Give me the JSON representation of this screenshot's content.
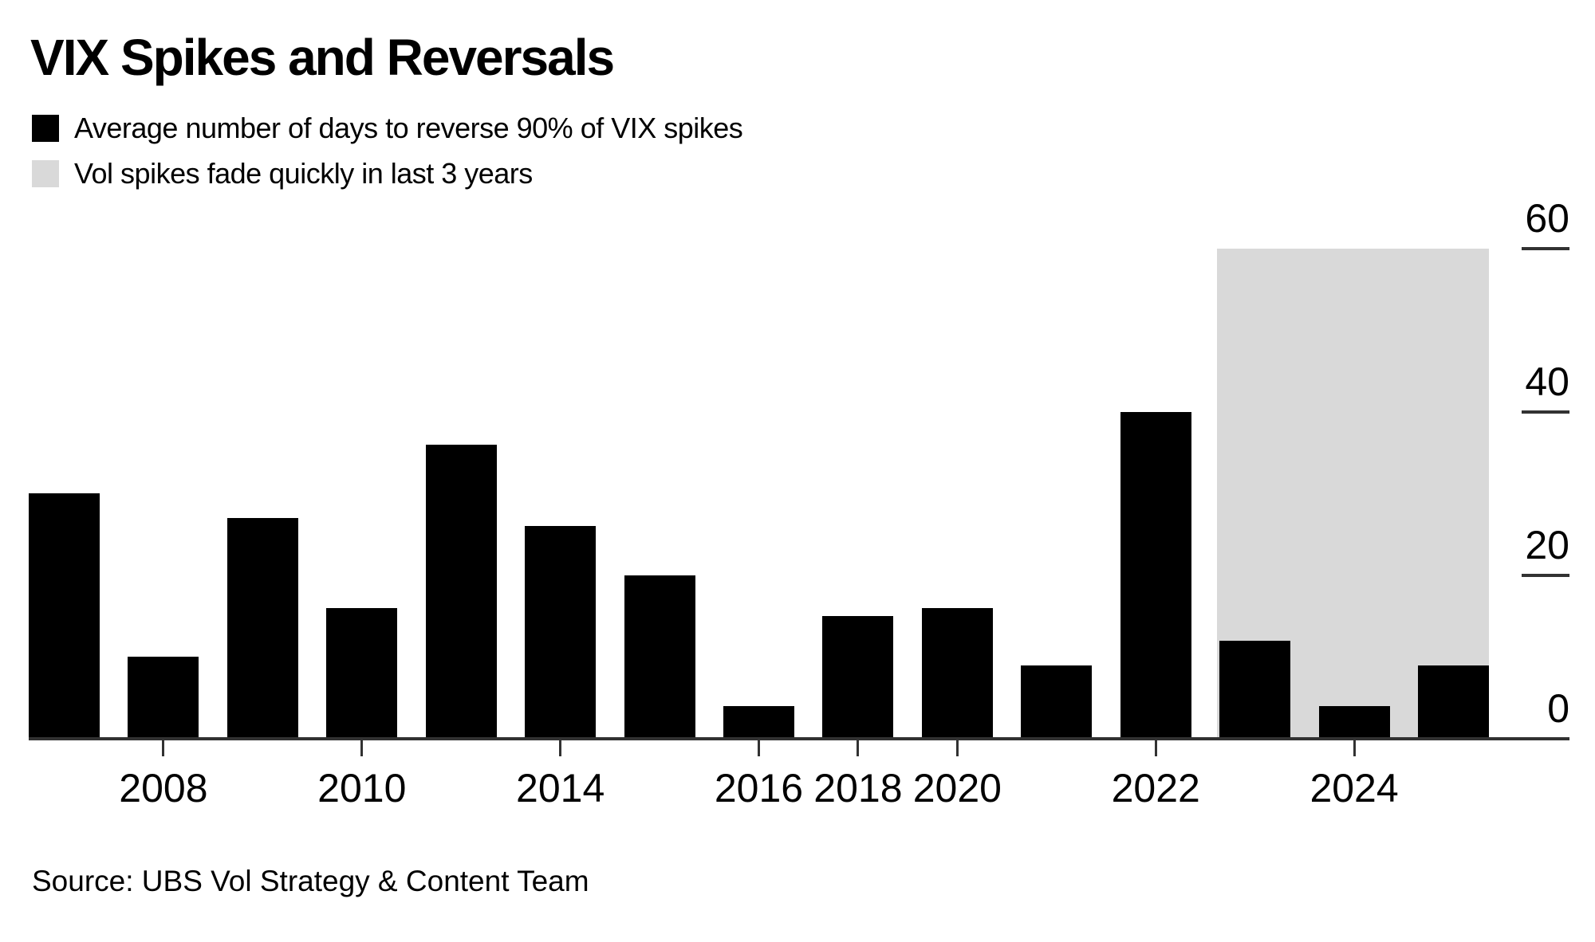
{
  "title": "VIX Spikes and Reversals",
  "legend": {
    "items": [
      {
        "label": "Average number of days to reverse 90% of VIX spikes",
        "color": "#000000"
      },
      {
        "label": "Vol spikes fade quickly in last 3 years",
        "color": "#d9d9d9"
      }
    ]
  },
  "source": "Source: UBS Vol Strategy & Content Team",
  "chart_data": {
    "type": "bar",
    "title": "VIX Spikes and Reversals",
    "series_label": "Average number of days to reverse 90% of VIX spikes",
    "values": [
      30,
      10,
      27,
      16,
      36,
      26,
      20,
      4,
      15,
      16,
      9,
      40,
      12,
      4,
      9
    ],
    "x_tick_labels": [
      {
        "label": "2008",
        "bar_index": 1
      },
      {
        "label": "2010",
        "bar_index": 3
      },
      {
        "label": "2014",
        "bar_index": 5
      },
      {
        "label": "2016",
        "bar_index": 7
      },
      {
        "label": "2018",
        "bar_index": 8
      },
      {
        "label": "2020",
        "bar_index": 9
      },
      {
        "label": "2022",
        "bar_index": 11
      },
      {
        "label": "2024",
        "bar_index": 13
      }
    ],
    "yticks": [
      0,
      20,
      40,
      60
    ],
    "ylim": [
      0,
      66
    ],
    "y_axis_position": "right",
    "grid": "off",
    "bar_color": "#000000",
    "axis_color": "#323232",
    "highlight_region": {
      "meaning": "Vol spikes fade quickly in last 3 years",
      "color": "#d9d9d9",
      "bar_start_index": 12,
      "bar_end_index": 14,
      "top_value": 60
    }
  }
}
